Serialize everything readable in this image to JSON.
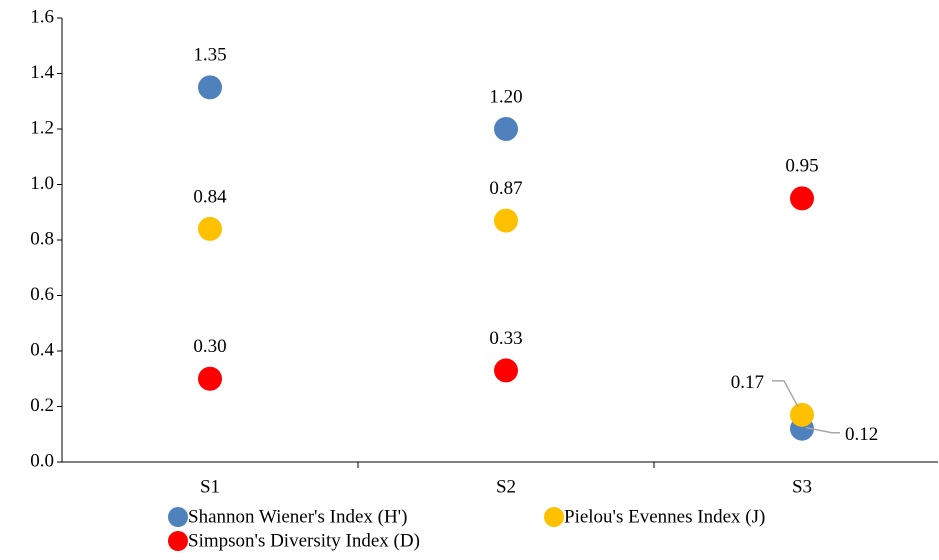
{
  "chart_data": {
    "type": "scatter",
    "categories": [
      "S1",
      "S2",
      "S3"
    ],
    "series": [
      {
        "name": "Shannon Wiener's Index (H')",
        "color": "#4f81bd",
        "values": [
          1.35,
          1.2,
          0.12
        ],
        "value_labels": [
          "1.35",
          "1.20",
          "0.12"
        ]
      },
      {
        "name": "Pielou's Evennes Index (J)",
        "color": "#ffc000",
        "values": [
          0.84,
          0.87,
          0.17
        ],
        "value_labels": [
          "0.84",
          "0.87",
          "0.17"
        ]
      },
      {
        "name": "Simpson's Diversity Index (D)",
        "color": "#ff0000",
        "values": [
          0.3,
          0.33,
          0.95
        ],
        "value_labels": [
          "0.30",
          "0.33",
          "0.95"
        ]
      }
    ],
    "ylim": [
      0,
      1.6
    ],
    "yticks": [
      {
        "value": 0,
        "label": "0.0"
      },
      0.2,
      0.4,
      0.6,
      0.8,
      {
        "value": 1,
        "label": "1.0"
      },
      1.2,
      1.4,
      1.6
    ],
    "legend": "bottom"
  }
}
